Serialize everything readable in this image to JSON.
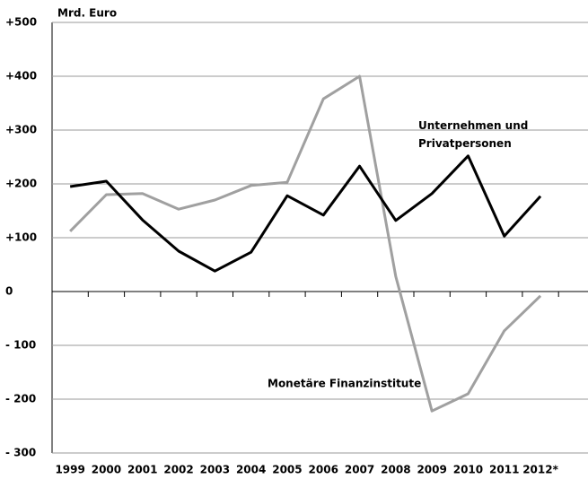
{
  "chart_data": {
    "type": "line",
    "unit_label": "Mrd. Euro",
    "categories": [
      "1999",
      "2000",
      "2001",
      "2002",
      "2003",
      "2004",
      "2005",
      "2006",
      "2007",
      "2008",
      "2009",
      "2010",
      "2011",
      "2012*"
    ],
    "series": [
      {
        "name": "Unternehmen und Privatpersonen",
        "color": "#000000",
        "values": [
          195,
          205,
          133,
          75,
          38,
          73,
          178,
          142,
          233,
          132,
          182,
          252,
          103,
          177
        ]
      },
      {
        "name": "Monetäre Finanzinstitute",
        "color": "#a0a0a0",
        "values": [
          112,
          180,
          182,
          153,
          170,
          197,
          203,
          358,
          400,
          28,
          -222,
          -190,
          -73,
          -8
        ]
      }
    ],
    "ylim": [
      -300,
      500
    ],
    "yticks": [
      {
        "value": 500,
        "label": "+500"
      },
      {
        "value": 400,
        "label": "+400"
      },
      {
        "value": 300,
        "label": "+300"
      },
      {
        "value": 200,
        "label": "+200"
      },
      {
        "value": 100,
        "label": "+100"
      },
      0,
      {
        "value": -100,
        "label": "- 100"
      },
      {
        "value": -200,
        "label": "- 200"
      },
      {
        "value": -300,
        "label": "- 300"
      }
    ],
    "grid": true
  }
}
